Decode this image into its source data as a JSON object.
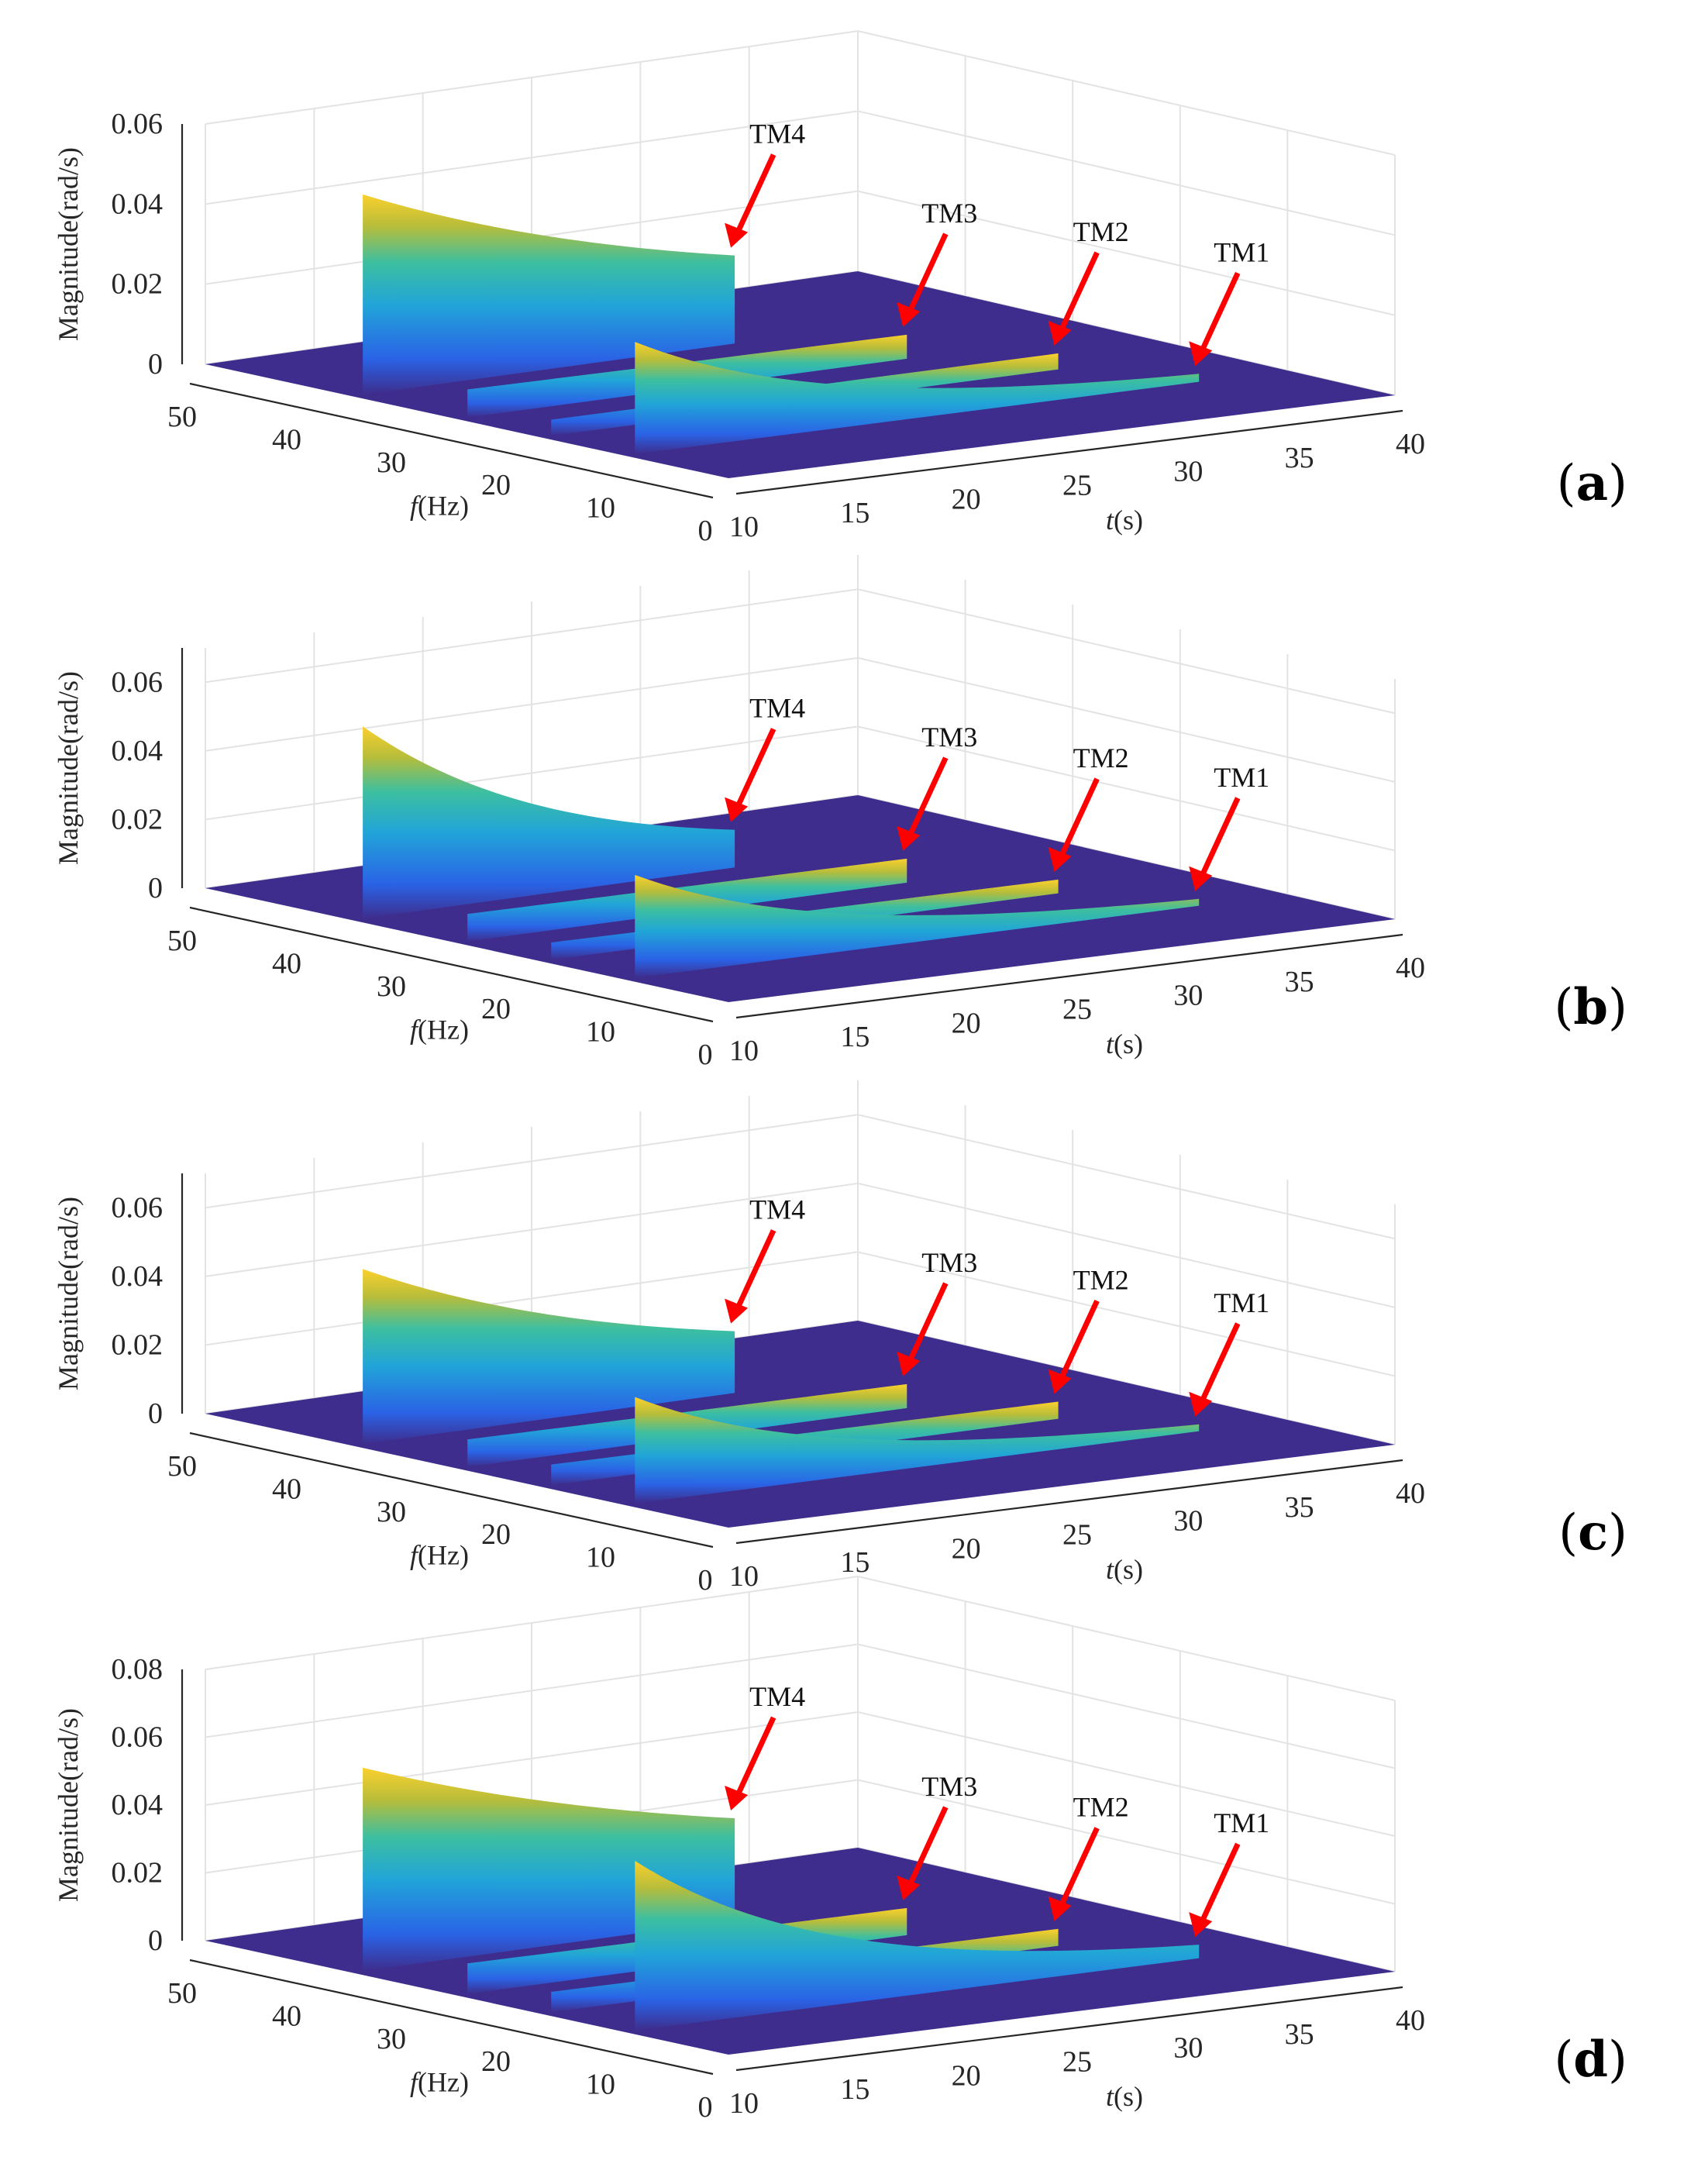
{
  "figure": {
    "panel_labels": [
      "(a)",
      "(b)",
      "(c)",
      "(d)"
    ],
    "colors": {
      "floor": "#3e2d8c",
      "colormap": [
        "#3e2d8c",
        "#2a63e6",
        "#21a5d8",
        "#3dbfa0",
        "#b7bd3a",
        "#fbd02d"
      ],
      "arrow": "#ff0000"
    }
  },
  "chart_data": [
    {
      "type": "surface3d",
      "panel": "(a)",
      "xlabel_italic": "t",
      "xlabel_unit": "(s)",
      "ylabel_italic": "f",
      "ylabel_unit": "(Hz)",
      "zlabel": "Magnitude(rad/s)",
      "xticks": [
        "10",
        "15",
        "20",
        "25",
        "30",
        "35",
        "40"
      ],
      "yticks": [
        "0",
        "10",
        "20",
        "30",
        "40",
        "50"
      ],
      "zticks": [
        "0",
        "0.02",
        "0.04",
        "0.06"
      ],
      "xlim": [
        10,
        40
      ],
      "ylim": [
        0,
        50
      ],
      "zlim": [
        0,
        0.06
      ],
      "ridges": [
        {
          "name": "TM4",
          "f_hz": 36,
          "t_start_s": 10.5,
          "t_end_s": 27.5,
          "peak": 0.05,
          "end": 0.022
        },
        {
          "name": "TM3",
          "f_hz": 26,
          "t_start_s": 10.5,
          "t_end_s": 30.5,
          "peak": 0.007,
          "end": 0.006
        },
        {
          "name": "TM2",
          "f_hz": 18,
          "t_start_s": 10.5,
          "t_end_s": 33.5,
          "peak": 0.004,
          "end": 0.004
        },
        {
          "name": "TM1",
          "f_hz": 10,
          "t_start_s": 10.5,
          "t_end_s": 36.0,
          "peak": 0.028,
          "end": 0.002
        }
      ],
      "annotations": [
        "TM4",
        "TM3",
        "TM2",
        "TM1"
      ]
    },
    {
      "type": "surface3d",
      "panel": "(b)",
      "xlabel_italic": "t",
      "xlabel_unit": "(s)",
      "ylabel_italic": "f",
      "ylabel_unit": "(Hz)",
      "zlabel": "Magnitude(rad/s)",
      "xticks": [
        "10",
        "15",
        "20",
        "25",
        "30",
        "35",
        "40"
      ],
      "yticks": [
        "0",
        "10",
        "20",
        "30",
        "40",
        "50"
      ],
      "zticks": [
        "0",
        "0.02",
        "0.04",
        "0.06"
      ],
      "xlim": [
        10,
        40
      ],
      "ylim": [
        0,
        50
      ],
      "zlim": [
        0,
        0.07
      ],
      "ridges": [
        {
          "name": "TM4",
          "f_hz": 36,
          "t_start_s": 10.5,
          "t_end_s": 27.5,
          "peak": 0.056,
          "end": 0.011
        },
        {
          "name": "TM3",
          "f_hz": 26,
          "t_start_s": 10.5,
          "t_end_s": 30.5,
          "peak": 0.008,
          "end": 0.007
        },
        {
          "name": "TM2",
          "f_hz": 18,
          "t_start_s": 10.5,
          "t_end_s": 33.5,
          "peak": 0.005,
          "end": 0.004
        },
        {
          "name": "TM1",
          "f_hz": 10,
          "t_start_s": 10.5,
          "t_end_s": 36.0,
          "peak": 0.03,
          "end": 0.002
        }
      ],
      "annotations": [
        "TM4",
        "TM3",
        "TM2",
        "TM1"
      ]
    },
    {
      "type": "surface3d",
      "panel": "(c)",
      "xlabel_italic": "t",
      "xlabel_unit": "(s)",
      "ylabel_italic": "f",
      "ylabel_unit": "(Hz)",
      "zlabel": "Magnitude(rad/s)",
      "xticks": [
        "10",
        "15",
        "20",
        "25",
        "30",
        "35",
        "40"
      ],
      "yticks": [
        "0",
        "10",
        "20",
        "30",
        "40",
        "50"
      ],
      "zticks": [
        "0",
        "0.02",
        "0.04",
        "0.06"
      ],
      "xlim": [
        10,
        40
      ],
      "ylim": [
        0,
        50
      ],
      "zlim": [
        0,
        0.07
      ],
      "ridges": [
        {
          "name": "TM4",
          "f_hz": 36,
          "t_start_s": 10.5,
          "t_end_s": 27.5,
          "peak": 0.051,
          "end": 0.018
        },
        {
          "name": "TM3",
          "f_hz": 26,
          "t_start_s": 10.5,
          "t_end_s": 30.5,
          "peak": 0.008,
          "end": 0.007
        },
        {
          "name": "TM2",
          "f_hz": 18,
          "t_start_s": 10.5,
          "t_end_s": 33.5,
          "peak": 0.006,
          "end": 0.005
        },
        {
          "name": "TM1",
          "f_hz": 10,
          "t_start_s": 10.5,
          "t_end_s": 36.0,
          "peak": 0.031,
          "end": 0.002
        }
      ],
      "annotations": [
        "TM4",
        "TM3",
        "TM2",
        "TM1"
      ]
    },
    {
      "type": "surface3d",
      "panel": "(d)",
      "xlabel_italic": "t",
      "xlabel_unit": "(s)",
      "ylabel_italic": "f",
      "ylabel_unit": "(Hz)",
      "zlabel": "Magnitude(rad/s)",
      "xticks": [
        "10",
        "15",
        "20",
        "25",
        "30",
        "35",
        "40"
      ],
      "yticks": [
        "0",
        "10",
        "20",
        "30",
        "40",
        "50"
      ],
      "zticks": [
        "0",
        "0.02",
        "0.04",
        "0.06",
        "0.08"
      ],
      "xlim": [
        10,
        40
      ],
      "ylim": [
        0,
        50
      ],
      "zlim": [
        0,
        0.08
      ],
      "ridges": [
        {
          "name": "TM4",
          "f_hz": 36,
          "t_start_s": 10.5,
          "t_end_s": 27.5,
          "peak": 0.06,
          "end": 0.03
        },
        {
          "name": "TM3",
          "f_hz": 26,
          "t_start_s": 10.5,
          "t_end_s": 30.5,
          "peak": 0.009,
          "end": 0.008
        },
        {
          "name": "TM2",
          "f_hz": 18,
          "t_start_s": 10.5,
          "t_end_s": 33.5,
          "peak": 0.006,
          "end": 0.005
        },
        {
          "name": "TM1",
          "f_hz": 10,
          "t_start_s": 10.5,
          "t_end_s": 36.0,
          "peak": 0.05,
          "end": 0.004
        }
      ],
      "annotations": [
        "TM4",
        "TM3",
        "TM2",
        "TM1"
      ]
    }
  ]
}
